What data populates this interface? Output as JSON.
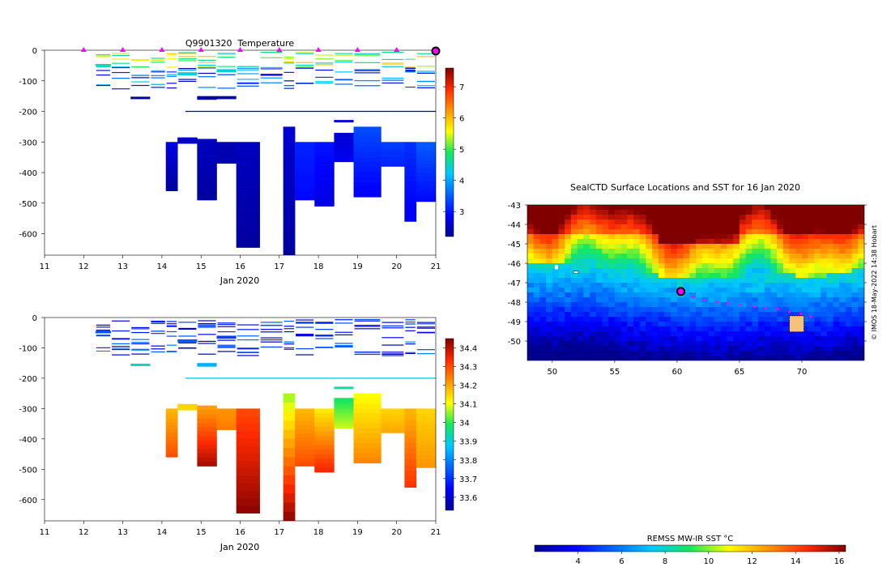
{
  "chart_data": [
    {
      "type": "heatmap",
      "id": "temperature-section",
      "title": "Q9901320  Temperature",
      "xlabel": "Jan 2020",
      "ylabel": "",
      "xlim": [
        11,
        21
      ],
      "ylim": [
        -670,
        0
      ],
      "x_ticks": [
        "11",
        "12",
        "13",
        "14",
        "15",
        "16",
        "17",
        "18",
        "19",
        "20",
        "21"
      ],
      "y_ticks": [
        "0",
        "-100",
        "-200",
        "-300",
        "-400",
        "-500",
        "-600"
      ],
      "colorbar": {
        "min": 2.2,
        "max": 7.6,
        "ticks": [
          "3",
          "4",
          "5",
          "6",
          "7"
        ]
      },
      "surface_markers_x": [
        12,
        13,
        14,
        15,
        16,
        17,
        18,
        19,
        20
      ],
      "latest_marker_x": 21,
      "deep_columns": [
        {
          "x0": 14.1,
          "x1": 14.4,
          "top": -300,
          "bottom": -460,
          "v_top": 2.7,
          "v_bottom": 2.3
        },
        {
          "x0": 14.4,
          "x1": 14.9,
          "top": -285,
          "bottom": -305,
          "v_top": 2.5,
          "v_bottom": 2.5
        },
        {
          "x0": 14.9,
          "x1": 15.4,
          "top": -290,
          "bottom": -490,
          "v_top": 2.5,
          "v_bottom": 2.3
        },
        {
          "x0": 15.4,
          "x1": 15.9,
          "top": -300,
          "bottom": -370,
          "v_top": 2.4,
          "v_bottom": 2.4
        },
        {
          "x0": 15.9,
          "x1": 16.5,
          "top": -300,
          "bottom": -645,
          "v_top": 2.5,
          "v_bottom": 2.3
        },
        {
          "x0": 17.1,
          "x1": 17.4,
          "top": -250,
          "bottom": -670,
          "v_top": 2.6,
          "v_bottom": 2.3
        },
        {
          "x0": 17.4,
          "x1": 17.9,
          "top": -300,
          "bottom": -490,
          "v_top": 3.1,
          "v_bottom": 2.9
        },
        {
          "x0": 17.9,
          "x1": 18.4,
          "top": -300,
          "bottom": -510,
          "v_top": 3.0,
          "v_bottom": 2.7
        },
        {
          "x0": 18.4,
          "x1": 18.9,
          "top": -270,
          "bottom": -365,
          "v_top": 2.6,
          "v_bottom": 2.8
        },
        {
          "x0": 18.9,
          "x1": 19.6,
          "top": -250,
          "bottom": -480,
          "v_top": 3.4,
          "v_bottom": 2.8
        },
        {
          "x0": 19.6,
          "x1": 20.2,
          "top": -300,
          "bottom": -380,
          "v_top": 3.3,
          "v_bottom": 3.1
        },
        {
          "x0": 20.2,
          "x1": 20.5,
          "top": -300,
          "bottom": -560,
          "v_top": 3.2,
          "v_bottom": 2.8
        },
        {
          "x0": 20.5,
          "x1": 21.0,
          "top": -300,
          "bottom": -495,
          "v_top": 3.5,
          "v_bottom": 2.9
        }
      ],
      "shallow_patches": [
        {
          "x0": 12.3,
          "x1": 12.7,
          "top": -45,
          "bottom": -52,
          "value": 4.6
        },
        {
          "x0": 13.2,
          "x1": 13.7,
          "top": -152,
          "bottom": -160,
          "value": 2.3
        },
        {
          "x0": 14.4,
          "x1": 14.9,
          "top": -72,
          "bottom": -82,
          "value": 4.4
        },
        {
          "x0": 14.9,
          "x1": 15.4,
          "top": -150,
          "bottom": -162,
          "value": 2.3
        },
        {
          "x0": 15.4,
          "x1": 15.9,
          "top": -150,
          "bottom": -160,
          "value": 2.4
        },
        {
          "x0": 15.4,
          "x1": 15.9,
          "top": -62,
          "bottom": -72,
          "value": 4.4
        },
        {
          "x0": 18.4,
          "x1": 18.9,
          "top": -228,
          "bottom": -236,
          "value": 2.6
        }
      ]
    },
    {
      "type": "heatmap",
      "id": "salinity-section",
      "title": "",
      "xlabel": "Jan 2020",
      "ylabel": "",
      "xlim": [
        11,
        21
      ],
      "ylim": [
        -670,
        0
      ],
      "x_ticks": [
        "11",
        "12",
        "13",
        "14",
        "15",
        "16",
        "17",
        "18",
        "19",
        "20",
        "21"
      ],
      "y_ticks": [
        "0",
        "-100",
        "-200",
        "-300",
        "-400",
        "-500",
        "-600"
      ],
      "colorbar": {
        "min": 33.53,
        "max": 34.45,
        "ticks": [
          "33.6",
          "33.7",
          "33.8",
          "33.9",
          "34",
          "34.1",
          "34.2",
          "34.3",
          "34.4"
        ]
      },
      "deep_columns": [
        {
          "x0": 14.1,
          "x1": 14.4,
          "top": -300,
          "bottom": -460,
          "v_top": 34.18,
          "v_bottom": 34.3
        },
        {
          "x0": 14.4,
          "x1": 14.9,
          "top": -285,
          "bottom": -305,
          "v_top": 34.15,
          "v_bottom": 34.15
        },
        {
          "x0": 14.9,
          "x1": 15.4,
          "top": -290,
          "bottom": -490,
          "v_top": 34.2,
          "v_bottom": 34.42
        },
        {
          "x0": 15.4,
          "x1": 15.9,
          "top": -300,
          "bottom": -370,
          "v_top": 34.22,
          "v_bottom": 34.25
        },
        {
          "x0": 15.9,
          "x1": 16.5,
          "top": -300,
          "bottom": -645,
          "v_top": 34.3,
          "v_bottom": 34.44
        },
        {
          "x0": 17.1,
          "x1": 17.4,
          "top": -250,
          "bottom": -670,
          "v_top": 34.05,
          "v_bottom": 34.44
        },
        {
          "x0": 17.4,
          "x1": 17.9,
          "top": -300,
          "bottom": -490,
          "v_top": 34.18,
          "v_bottom": 34.3
        },
        {
          "x0": 17.9,
          "x1": 18.4,
          "top": -300,
          "bottom": -510,
          "v_top": 34.12,
          "v_bottom": 34.35
        },
        {
          "x0": 18.4,
          "x1": 18.9,
          "top": -265,
          "bottom": -365,
          "v_top": 33.98,
          "v_bottom": 34.08
        },
        {
          "x0": 18.9,
          "x1": 19.6,
          "top": -250,
          "bottom": -480,
          "v_top": 34.1,
          "v_bottom": 34.24
        },
        {
          "x0": 19.6,
          "x1": 20.2,
          "top": -300,
          "bottom": -380,
          "v_top": 34.15,
          "v_bottom": 34.2
        },
        {
          "x0": 20.2,
          "x1": 20.5,
          "top": -300,
          "bottom": -560,
          "v_top": 34.18,
          "v_bottom": 34.33
        },
        {
          "x0": 20.5,
          "x1": 21.0,
          "top": -300,
          "bottom": -495,
          "v_top": 34.15,
          "v_bottom": 34.22
        }
      ],
      "shallow_patches": [
        {
          "x0": 12.3,
          "x1": 12.7,
          "top": -45,
          "bottom": -52,
          "value": 33.74
        },
        {
          "x0": 13.2,
          "x1": 13.7,
          "top": -152,
          "bottom": -160,
          "value": 33.92
        },
        {
          "x0": 14.4,
          "x1": 14.9,
          "top": -72,
          "bottom": -82,
          "value": 33.75
        },
        {
          "x0": 14.9,
          "x1": 15.4,
          "top": -150,
          "bottom": -162,
          "value": 33.85
        },
        {
          "x0": 15.4,
          "x1": 15.9,
          "top": -60,
          "bottom": -70,
          "value": 33.72
        },
        {
          "x0": 18.4,
          "x1": 18.9,
          "top": -228,
          "bottom": -236,
          "value": 33.95
        }
      ]
    },
    {
      "type": "heatmap",
      "id": "sst-map",
      "title": "SealCTD Surface Locations and SST for 16 Jan 2020",
      "xlabel": "",
      "ylabel": "",
      "xlim": [
        48,
        75
      ],
      "ylim": [
        -51,
        -43
      ],
      "x_ticks": [
        "50",
        "55",
        "60",
        "65",
        "70"
      ],
      "y_ticks": [
        "-43",
        "-44",
        "-45",
        "-46",
        "-47",
        "-48",
        "-49",
        "-50"
      ],
      "colorbar": {
        "label": "REMSS MW-IR SST °C",
        "min": 2,
        "max": 16.3,
        "ticks": [
          "4",
          "6",
          "8",
          "10",
          "12",
          "14",
          "16"
        ]
      },
      "credit": "© IMOS 18-May-2022 14:38 Hobart",
      "frontal_boundary": {
        "lon": [
          48,
          50,
          52,
          54,
          56,
          58,
          60,
          62,
          64,
          66,
          68,
          70,
          72,
          74,
          75
        ],
        "lat": [
          -45.9,
          -46.0,
          -45.9,
          -46.0,
          -46.3,
          -46.5,
          -46.6,
          -46.6,
          -46.6,
          -46.5,
          -46.4,
          -46.6,
          -46.5,
          -46.2,
          -46.3
        ]
      },
      "track": {
        "lon": [
          60.4,
          61.3,
          62.2,
          63.2,
          64.1,
          65.1,
          66.2,
          67.1,
          68.1,
          69.0,
          69.9,
          70.7
        ],
        "lat": [
          -47.5,
          -47.75,
          -47.9,
          -48.0,
          -48.05,
          -48.15,
          -48.25,
          -48.3,
          -48.35,
          -48.5,
          -48.6,
          -48.75
        ]
      },
      "latest_location": {
        "lon": 60.3,
        "lat": -47.45
      }
    }
  ]
}
